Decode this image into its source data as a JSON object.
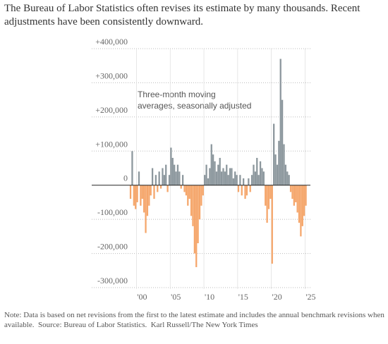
{
  "chart_data": {
    "type": "bar",
    "title": "The Bureau of Labor Statistics often revises its estimate by many thousands. Recent adjustments have been consistently downward.",
    "annotation": [
      "Three-month moving",
      "averages, seasonally adjusted"
    ],
    "note": "Note: Data is based on net revisions from the first to the latest estimate and includes the annual benchmark revisions when available.",
    "source": "Source: Bureau of Labor Statistics.",
    "credit": "Karl Russell/The New York Times",
    "x": [
      1999,
      1999.25,
      1999.5,
      1999.75,
      2000,
      2000.25,
      2000.5,
      2000.75,
      2001,
      2001.25,
      2001.5,
      2001.75,
      2002,
      2002.25,
      2002.5,
      2002.75,
      2003,
      2003.25,
      2003.5,
      2003.75,
      2004,
      2004.25,
      2004.5,
      2004.75,
      2005,
      2005.25,
      2005.5,
      2005.75,
      2006,
      2006.25,
      2006.5,
      2006.75,
      2007,
      2007.25,
      2007.5,
      2007.75,
      2008,
      2008.25,
      2008.5,
      2008.75,
      2009,
      2009.25,
      2009.5,
      2009.75,
      2010,
      2010.25,
      2010.5,
      2010.75,
      2011,
      2011.25,
      2011.5,
      2011.75,
      2012,
      2012.25,
      2012.5,
      2012.75,
      2013,
      2013.25,
      2013.5,
      2013.75,
      2014,
      2014.25,
      2014.5,
      2014.75,
      2015,
      2015.25,
      2015.5,
      2015.75,
      2016,
      2016.25,
      2016.5,
      2016.75,
      2017,
      2017.25,
      2017.5,
      2017.75,
      2018,
      2018.25,
      2018.5,
      2018.75,
      2019,
      2019.25,
      2019.5,
      2019.75,
      2020,
      2020.25,
      2020.5,
      2020.75,
      2021,
      2021.25,
      2021.5,
      2021.75,
      2022,
      2022.25,
      2022.5,
      2022.75,
      2023,
      2023.25,
      2023.5,
      2023.75,
      2024,
      2024.25,
      2024.5,
      2024.75,
      2025
    ],
    "values": [
      -40000,
      100000,
      -60000,
      -70000,
      -50000,
      40000,
      -60000,
      -40000,
      -80000,
      -140000,
      -90000,
      -60000,
      -30000,
      50000,
      -40000,
      30000,
      -20000,
      40000,
      -10000,
      50000,
      30000,
      60000,
      -20000,
      30000,
      110000,
      80000,
      60000,
      40000,
      60000,
      40000,
      -10000,
      30000,
      -20000,
      -30000,
      -60000,
      -40000,
      -90000,
      -120000,
      -200000,
      -240000,
      -170000,
      -100000,
      -60000,
      -30000,
      30000,
      60000,
      20000,
      50000,
      120000,
      90000,
      70000,
      40000,
      60000,
      80000,
      40000,
      50000,
      40000,
      60000,
      30000,
      50000,
      50000,
      20000,
      40000,
      30000,
      -20000,
      30000,
      -30000,
      20000,
      -40000,
      -30000,
      20000,
      -20000,
      30000,
      60000,
      40000,
      80000,
      30000,
      70000,
      50000,
      40000,
      -60000,
      -110000,
      -70000,
      -40000,
      -230000,
      180000,
      90000,
      60000,
      130000,
      370000,
      250000,
      120000,
      60000,
      40000,
      30000,
      -20000,
      -40000,
      -60000,
      -50000,
      -80000,
      -110000,
      -150000,
      -120000,
      -90000,
      -60000
    ],
    "color": "#8c979d",
    "negative_color": "#f5a66b",
    "ylim": [
      -300000,
      400000
    ],
    "yticks": [
      {
        "value": -300000,
        "label": "-300,000"
      },
      {
        "value": -200000,
        "label": "-200,000"
      },
      {
        "value": -100000,
        "label": "-100,000"
      },
      0,
      {
        "value": 100000,
        "label": "+100,000"
      },
      {
        "value": 200000,
        "label": "+200,000"
      },
      {
        "value": 300000,
        "label": "+300,000"
      },
      {
        "value": 400000,
        "label": "+400,000"
      }
    ],
    "xlim": [
      1998.8,
      2026
    ],
    "xticks": [
      {
        "value": 2000,
        "label": "'00"
      },
      {
        "value": 2005,
        "label": "'05"
      },
      {
        "value": 2010,
        "label": "'10"
      },
      {
        "value": 2015,
        "label": "'15"
      },
      {
        "value": 2020,
        "label": "'20"
      },
      {
        "value": 2025,
        "label": "'25"
      }
    ],
    "grid": true
  }
}
